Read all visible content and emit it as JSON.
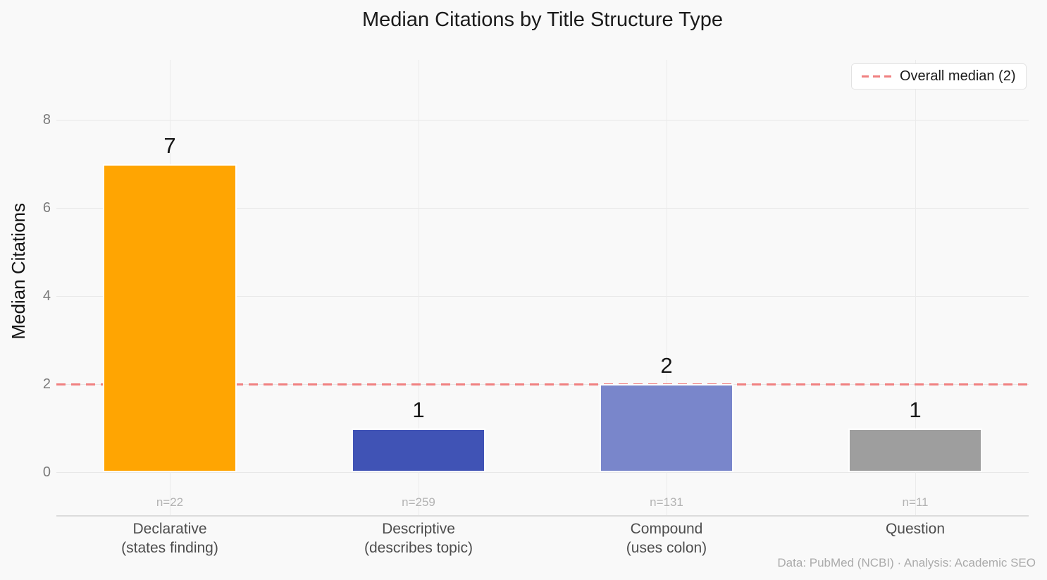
{
  "header": {
    "title": "Median Citations by Title Structure Type"
  },
  "yaxis": {
    "label": "Median Citations",
    "ticks": [
      "0",
      "2",
      "4",
      "6",
      "8"
    ]
  },
  "legend": {
    "label": "Overall median (2)"
  },
  "bars": [
    {
      "line1": "Declarative",
      "line2": "(states finding)",
      "n": "n=22",
      "value": "7"
    },
    {
      "line1": "Descriptive",
      "line2": "(describes topic)",
      "n": "n=259",
      "value": "1"
    },
    {
      "line1": "Compound",
      "line2": "(uses colon)",
      "n": "n=131",
      "value": "2"
    },
    {
      "line1": "Question",
      "line2": "",
      "n": "n=11",
      "value": "1"
    }
  ],
  "footer": {
    "source": "Data: PubMed (NCBI) · Analysis: Academic SEO"
  },
  "chart_data": {
    "type": "bar",
    "title": "Median Citations by Title Structure Type",
    "xlabel": "",
    "ylabel": "Median Citations",
    "categories": [
      "Declarative (states finding)",
      "Descriptive (describes topic)",
      "Compound (uses colon)",
      "Question"
    ],
    "values": [
      7,
      1,
      2,
      1
    ],
    "value_labels": [
      "7",
      "1",
      "2",
      "1"
    ],
    "sample_sizes": [
      "n=22",
      "n=259",
      "n=131",
      "n=11"
    ],
    "bar_colors": [
      "#FFA502",
      "#4053B5",
      "#7986CB",
      "#9E9E9E"
    ],
    "yticks": [
      0,
      2,
      4,
      6,
      8
    ],
    "ylim": [
      0,
      8.8
    ],
    "grid": true,
    "legend_position": "top-right",
    "reference_line": {
      "value": 2,
      "style": "dashed",
      "color": "#F08080",
      "legend_label": "Overall median (2)"
    },
    "background_color": "#f9f9f9",
    "source_note": "Data: PubMed (NCBI) · Analysis: Academic SEO"
  }
}
